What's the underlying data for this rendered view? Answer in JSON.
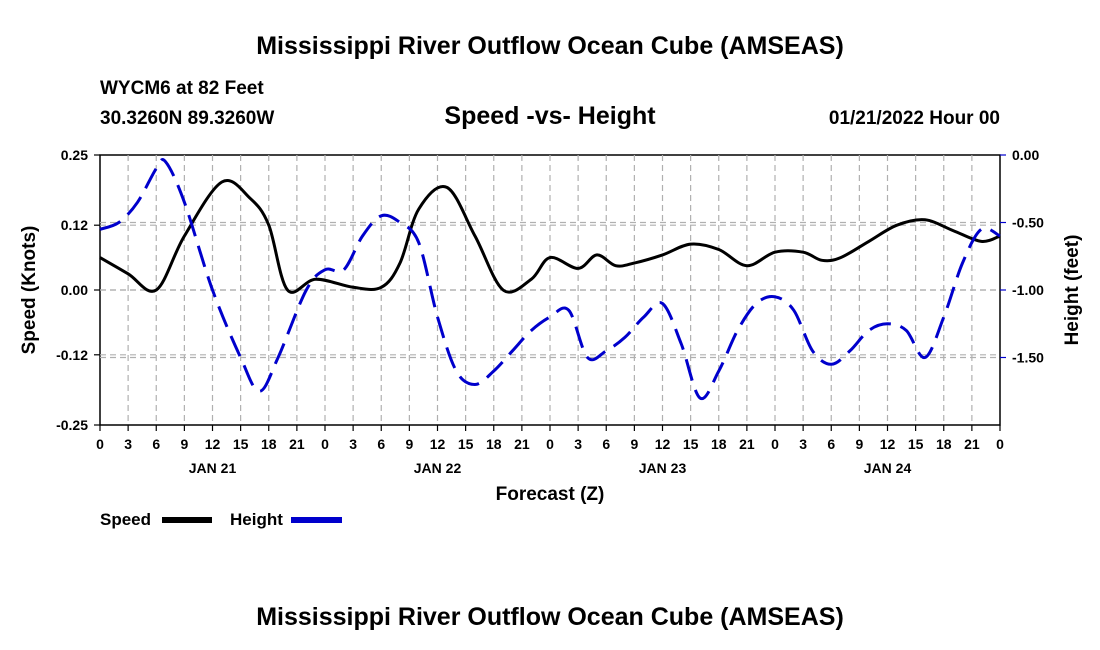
{
  "title": "Mississippi River Outflow Ocean Cube (AMSEAS)",
  "footer_title": "Mississippi River Outflow Ocean Cube (AMSEAS)",
  "station": "WYCM6 at 82 Feet",
  "coords": "30.3260N  89.3260W",
  "subtitle": "Speed -vs- Height",
  "datetime": "01/21/2022 Hour 00",
  "legend": {
    "speed": "Speed",
    "height": "Height"
  },
  "chart_data": {
    "type": "line",
    "xlabel": "Forecast (Z)",
    "ylabel_left": "Speed (Knots)",
    "ylabel_right": "Height (feet)",
    "ylim_left": [
      -0.25,
      0.25
    ],
    "ylim_right": [
      -2.0,
      0.0
    ],
    "xlim_hours": [
      0,
      96
    ],
    "left_ticks": [
      "0.25",
      "0.12",
      "0.00",
      "-0.12",
      "-0.25"
    ],
    "left_tick_values": [
      0.25,
      0.12,
      0.0,
      -0.12,
      -0.25
    ],
    "right_ticks": [
      "0.00",
      "-0.50",
      "-1.00",
      "-1.50"
    ],
    "right_tick_values": [
      0.0,
      -0.5,
      -1.0,
      -1.5
    ],
    "x_tick_labels": [
      "0",
      "3",
      "6",
      "9",
      "12",
      "15",
      "18",
      "21",
      "0",
      "3",
      "6",
      "9",
      "12",
      "15",
      "18",
      "21",
      "0",
      "3",
      "6",
      "9",
      "12",
      "15",
      "18",
      "21",
      "0",
      "3",
      "6",
      "9",
      "12",
      "15",
      "18",
      "21",
      "0"
    ],
    "day_labels": [
      {
        "label": "JAN 21",
        "hour": 12
      },
      {
        "label": "JAN 22",
        "hour": 36
      },
      {
        "label": "JAN 23",
        "hour": 60
      },
      {
        "label": "JAN 24",
        "hour": 84
      }
    ],
    "series": [
      {
        "name": "Speed",
        "axis": "left",
        "color": "#000000",
        "style": "solid",
        "x": [
          0,
          3,
          6,
          9,
          13,
          16,
          18,
          20,
          23,
          27,
          30,
          32,
          34,
          37,
          40,
          43,
          46,
          48,
          51,
          53,
          55,
          57,
          60,
          63,
          66,
          69,
          72,
          75,
          77,
          79,
          82,
          85,
          88,
          91,
          94,
          96
        ],
        "y": [
          0.06,
          0.03,
          0.0,
          0.1,
          0.2,
          0.17,
          0.12,
          0.0,
          0.02,
          0.005,
          0.005,
          0.05,
          0.15,
          0.19,
          0.1,
          0.0,
          0.02,
          0.06,
          0.04,
          0.065,
          0.045,
          0.05,
          0.065,
          0.085,
          0.075,
          0.045,
          0.07,
          0.07,
          0.055,
          0.06,
          0.09,
          0.12,
          0.13,
          0.11,
          0.09,
          0.1
        ]
      },
      {
        "name": "Height",
        "axis": "right",
        "color": "#0000cc",
        "style": "dashed",
        "x": [
          0,
          2,
          4,
          6,
          7,
          9,
          12,
          15,
          17,
          19,
          22,
          24,
          26,
          28,
          30,
          32,
          34,
          36,
          38,
          40,
          42,
          44,
          46,
          48,
          50,
          52,
          54,
          56,
          58,
          60,
          62,
          64,
          66,
          68,
          70,
          72,
          74,
          76,
          78,
          80,
          82,
          84,
          86,
          88,
          90,
          92,
          94,
          96
        ],
        "y": [
          -0.55,
          -0.5,
          -0.35,
          -0.1,
          -0.05,
          -0.35,
          -1.0,
          -1.5,
          -1.75,
          -1.5,
          -1.0,
          -0.85,
          -0.85,
          -0.6,
          -0.45,
          -0.5,
          -0.65,
          -1.2,
          -1.6,
          -1.7,
          -1.6,
          -1.45,
          -1.3,
          -1.2,
          -1.15,
          -1.5,
          -1.45,
          -1.35,
          -1.2,
          -1.1,
          -1.4,
          -1.8,
          -1.6,
          -1.3,
          -1.1,
          -1.05,
          -1.15,
          -1.45,
          -1.55,
          -1.45,
          -1.3,
          -1.25,
          -1.3,
          -1.5,
          -1.2,
          -0.8,
          -0.55,
          -0.6
        ]
      }
    ]
  }
}
